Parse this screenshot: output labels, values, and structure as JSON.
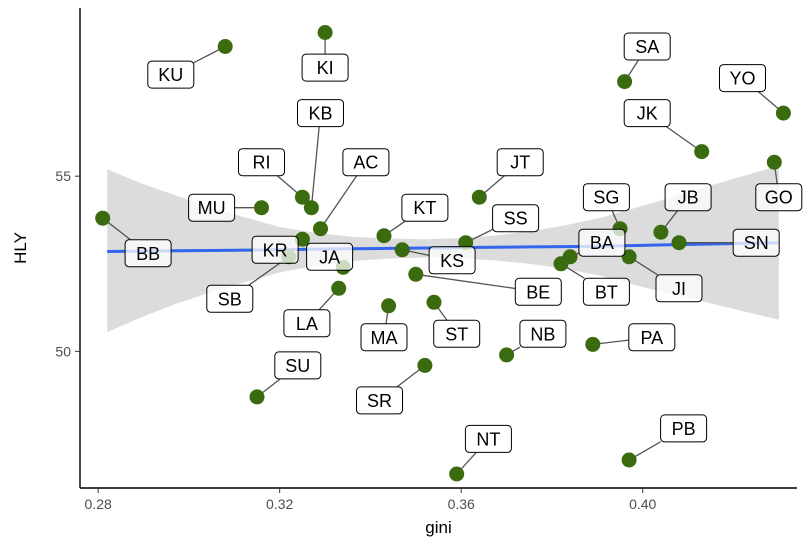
{
  "chart_data": {
    "type": "scatter",
    "title": "",
    "xlabel": "gini",
    "ylabel": "HLY",
    "xlim": [
      0.276,
      0.434
    ],
    "ylim": [
      46.1,
      59.8
    ],
    "xticks": [
      0.28,
      0.32,
      0.36,
      0.4
    ],
    "xtick_labels": [
      "0.28",
      "0.32",
      "0.36",
      "0.40"
    ],
    "yticks": [
      50,
      55
    ],
    "ytick_labels": [
      "50",
      "55"
    ],
    "grid": false,
    "point_color": "#3a6b0f",
    "trend": {
      "method": "linear",
      "color": "#3366ee",
      "band_color": "#d6d6d6",
      "x": [
        0.282,
        0.289,
        0.297,
        0.305,
        0.313,
        0.32,
        0.328,
        0.336,
        0.344,
        0.352,
        0.359,
        0.367,
        0.375,
        0.383,
        0.391,
        0.398,
        0.406,
        0.414,
        0.422,
        0.43
      ],
      "fit": [
        52.85,
        52.86,
        52.87,
        52.88,
        52.89,
        52.9,
        52.92,
        52.93,
        52.94,
        52.95,
        52.96,
        52.97,
        52.98,
        52.99,
        53.0,
        53.02,
        53.04,
        53.06,
        53.08,
        53.1
      ],
      "lower": [
        50.55,
        50.95,
        51.35,
        51.7,
        52.0,
        52.25,
        52.45,
        52.58,
        52.65,
        52.68,
        52.66,
        52.6,
        52.5,
        52.35,
        52.15,
        51.9,
        51.65,
        51.4,
        51.15,
        50.9
      ],
      "upper": [
        55.2,
        54.82,
        54.45,
        54.1,
        53.8,
        53.55,
        53.38,
        53.27,
        53.22,
        53.2,
        53.23,
        53.3,
        53.42,
        53.6,
        53.82,
        54.08,
        54.38,
        54.7,
        55.0,
        55.3
      ]
    },
    "points": [
      {
        "label": "KU",
        "x": 0.308,
        "y": 58.7,
        "lx": 0.296,
        "ly": 57.9
      },
      {
        "label": "KI",
        "x": 0.33,
        "y": 59.1,
        "lx": 0.33,
        "ly": 58.1
      },
      {
        "label": "SA",
        "x": 0.396,
        "y": 57.7,
        "lx": 0.401,
        "ly": 58.7
      },
      {
        "label": "YO",
        "x": 0.431,
        "y": 56.8,
        "lx": 0.422,
        "ly": 57.8
      },
      {
        "label": "KB",
        "x": 0.327,
        "y": 54.1,
        "lx": 0.329,
        "ly": 56.8
      },
      {
        "label": "JK",
        "x": 0.413,
        "y": 55.7,
        "lx": 0.401,
        "ly": 56.8
      },
      {
        "label": "RI",
        "x": 0.325,
        "y": 54.4,
        "lx": 0.316,
        "ly": 55.4
      },
      {
        "label": "AC",
        "x": 0.329,
        "y": 53.5,
        "lx": 0.339,
        "ly": 55.4
      },
      {
        "label": "JT",
        "x": 0.364,
        "y": 54.4,
        "lx": 0.373,
        "ly": 55.4
      },
      {
        "label": "GO",
        "x": 0.429,
        "y": 55.4,
        "lx": 0.43,
        "ly": 54.4
      },
      {
        "label": "MU",
        "x": 0.316,
        "y": 54.1,
        "lx": 0.305,
        "ly": 54.1
      },
      {
        "label": "SG",
        "x": 0.395,
        "y": 53.5,
        "lx": 0.392,
        "ly": 54.4
      },
      {
        "label": "JB",
        "x": 0.404,
        "y": 53.4,
        "lx": 0.41,
        "ly": 54.4
      },
      {
        "label": "KT",
        "x": 0.343,
        "y": 53.3,
        "lx": 0.352,
        "ly": 54.1
      },
      {
        "label": "SS",
        "x": 0.361,
        "y": 53.1,
        "lx": 0.372,
        "ly": 53.8
      },
      {
        "label": "BB",
        "x": 0.281,
        "y": 53.8,
        "lx": 0.291,
        "ly": 52.8
      },
      {
        "label": "KR",
        "x": 0.325,
        "y": 53.2,
        "lx": 0.319,
        "ly": 52.9
      },
      {
        "label": "BA",
        "x": 0.384,
        "y": 52.7,
        "lx": 0.391,
        "ly": 53.1
      },
      {
        "label": "SN",
        "x": 0.408,
        "y": 53.1,
        "lx": 0.425,
        "ly": 53.1
      },
      {
        "label": "JA",
        "x": 0.334,
        "y": 52.4,
        "lx": 0.331,
        "ly": 52.7
      },
      {
        "label": "KS",
        "x": 0.347,
        "y": 52.9,
        "lx": 0.358,
        "ly": 52.6
      },
      {
        "label": "JI",
        "x": 0.397,
        "y": 52.7,
        "lx": 0.408,
        "ly": 51.8
      },
      {
        "label": "BE",
        "x": 0.35,
        "y": 52.2,
        "lx": 0.377,
        "ly": 51.7
      },
      {
        "label": "BT",
        "x": 0.382,
        "y": 52.5,
        "lx": 0.392,
        "ly": 51.7
      },
      {
        "label": "SB",
        "x": 0.322,
        "y": 52.7,
        "lx": 0.309,
        "ly": 51.5
      },
      {
        "label": "LA",
        "x": 0.333,
        "y": 51.8,
        "lx": 0.326,
        "ly": 50.8
      },
      {
        "label": "MA",
        "x": 0.344,
        "y": 51.3,
        "lx": 0.343,
        "ly": 50.4
      },
      {
        "label": "ST",
        "x": 0.354,
        "y": 51.4,
        "lx": 0.359,
        "ly": 50.5
      },
      {
        "label": "NB",
        "x": 0.37,
        "y": 49.9,
        "lx": 0.378,
        "ly": 50.5
      },
      {
        "label": "PA",
        "x": 0.389,
        "y": 50.2,
        "lx": 0.402,
        "ly": 50.4
      },
      {
        "label": "SU",
        "x": 0.315,
        "y": 48.7,
        "lx": 0.324,
        "ly": 49.6
      },
      {
        "label": "SR",
        "x": 0.352,
        "y": 49.6,
        "lx": 0.342,
        "ly": 48.6
      },
      {
        "label": "NT",
        "x": 0.359,
        "y": 46.5,
        "lx": 0.366,
        "ly": 47.5
      },
      {
        "label": "PB",
        "x": 0.397,
        "y": 46.9,
        "lx": 0.409,
        "ly": 47.8
      }
    ]
  }
}
